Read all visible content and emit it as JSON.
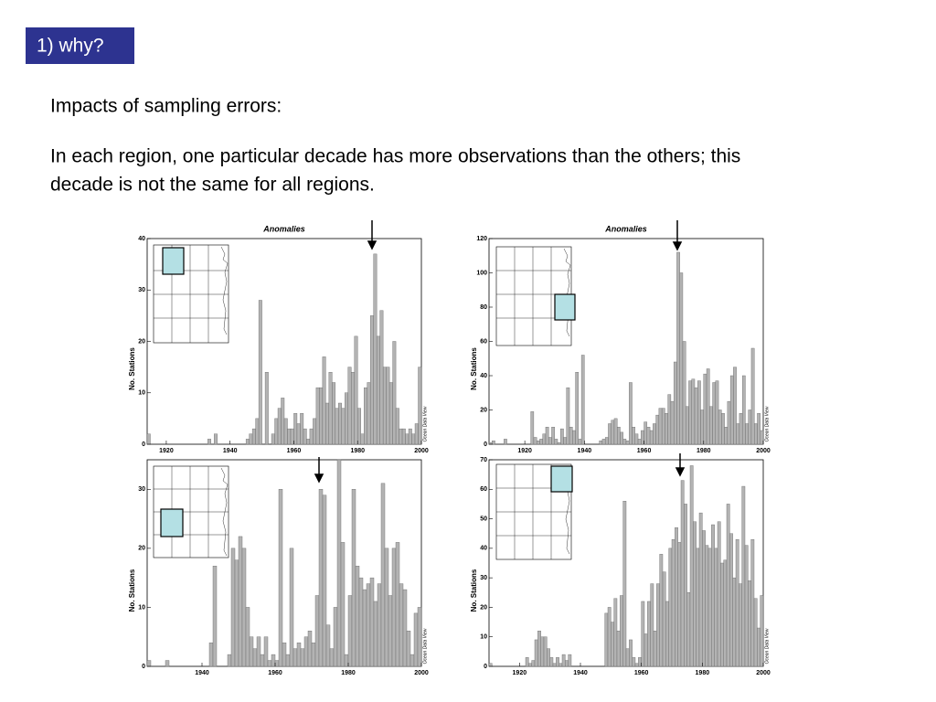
{
  "header": {
    "title": "1)  why?"
  },
  "body": [
    "Impacts of sampling errors:",
    "In each region, one particular decade has more observations than the others; this",
    "decade is not the same for all regions."
  ],
  "chart_data": [
    {
      "type": "bar",
      "title": "Anomalies",
      "ylabel": "No. Stations",
      "annotation": "Ocean Data View",
      "color": "#b3b3b3",
      "x": [
        1914,
        1933,
        1935,
        1945,
        1946,
        1947,
        1948,
        1949,
        1951,
        1953,
        1954,
        1955,
        1956,
        1957,
        1958,
        1959,
        1960,
        1961,
        1962,
        1963,
        1964,
        1965,
        1966,
        1967,
        1968,
        1969,
        1970,
        1971,
        1972,
        1973,
        1974,
        1975,
        1976,
        1977,
        1978,
        1979,
        1980,
        1981,
        1982,
        1983,
        1984,
        1985,
        1986,
        1987,
        1988,
        1989,
        1990,
        1991,
        1992,
        1993,
        1994,
        1995,
        1996,
        1997,
        1998,
        1999
      ],
      "values": [
        2,
        1,
        2,
        1,
        2,
        3,
        5,
        28,
        14,
        2,
        5,
        7,
        9,
        5,
        3,
        3,
        6,
        4,
        6,
        3,
        1,
        3,
        5,
        11,
        11,
        17,
        8,
        14,
        12,
        7,
        8,
        7,
        10,
        15,
        14,
        21,
        7,
        2,
        11,
        12,
        25,
        37,
        21,
        26,
        15,
        15,
        12,
        20,
        7,
        3,
        3,
        2,
        3,
        2,
        4,
        15
      ],
      "xlim": [
        1914,
        2000
      ],
      "ylim": [
        0,
        40
      ],
      "xticks": [
        1920,
        1940,
        1960,
        1980,
        2000
      ],
      "yticks": [
        0,
        10,
        20,
        30,
        40
      ]
    },
    {
      "type": "bar",
      "title": "Anomalies",
      "ylabel": "No. Stations",
      "annotation": "Ocean Data View",
      "color": "#b3b3b3",
      "x": [
        1908,
        1909,
        1913,
        1922,
        1923,
        1924,
        1925,
        1926,
        1927,
        1928,
        1929,
        1930,
        1931,
        1932,
        1933,
        1934,
        1935,
        1936,
        1937,
        1938,
        1939,
        1945,
        1946,
        1947,
        1948,
        1949,
        1950,
        1951,
        1952,
        1953,
        1954,
        1955,
        1956,
        1957,
        1958,
        1959,
        1960,
        1961,
        1962,
        1963,
        1964,
        1965,
        1966,
        1967,
        1968,
        1969,
        1970,
        1971,
        1972,
        1973,
        1974,
        1975,
        1976,
        1977,
        1978,
        1979,
        1980,
        1981,
        1982,
        1983,
        1984,
        1985,
        1986,
        1987,
        1988,
        1989,
        1990,
        1991,
        1992,
        1993,
        1994,
        1995,
        1996,
        1997,
        1998,
        1999
      ],
      "values": [
        1,
        2,
        3,
        19,
        4,
        2,
        3,
        6,
        10,
        4,
        10,
        3,
        1,
        9,
        4,
        33,
        10,
        8,
        42,
        3,
        52,
        2,
        3,
        4,
        12,
        14,
        15,
        10,
        7,
        3,
        2,
        36,
        10,
        6,
        3,
        8,
        13,
        10,
        8,
        12,
        17,
        21,
        21,
        18,
        29,
        25,
        48,
        112,
        100,
        60,
        22,
        37,
        38,
        33,
        37,
        20,
        41,
        44,
        22,
        36,
        37,
        20,
        18,
        10,
        25,
        40,
        45,
        12,
        18,
        40,
        12,
        20,
        56,
        12,
        18,
        8
      ],
      "xlim": [
        1908,
        2000
      ],
      "ylim": [
        0,
        120
      ],
      "xticks": [
        1920,
        1940,
        1960,
        1980,
        2000
      ],
      "yticks": [
        0,
        20,
        40,
        60,
        80,
        100,
        120
      ]
    },
    {
      "type": "bar",
      "ylabel": "No. Stations",
      "annotation": "Ocean Data View",
      "color": "#b3b3b3",
      "x": [
        1925,
        1930,
        1942,
        1943,
        1947,
        1948,
        1949,
        1950,
        1951,
        1952,
        1953,
        1954,
        1955,
        1956,
        1957,
        1958,
        1959,
        1960,
        1961,
        1962,
        1963,
        1964,
        1965,
        1966,
        1967,
        1968,
        1969,
        1970,
        1971,
        1972,
        1973,
        1974,
        1975,
        1976,
        1977,
        1978,
        1979,
        1980,
        1981,
        1982,
        1983,
        1984,
        1985,
        1986,
        1987,
        1988,
        1989,
        1990,
        1991,
        1992,
        1993,
        1994,
        1995,
        1996,
        1997,
        1998,
        1999
      ],
      "values": [
        1,
        1,
        4,
        17,
        2,
        20,
        18,
        22,
        20,
        10,
        5,
        3,
        5,
        2,
        5,
        1,
        2,
        1,
        30,
        4,
        2,
        20,
        3,
        4,
        3,
        5,
        6,
        4,
        12,
        30,
        29,
        7,
        3,
        10,
        35,
        21,
        2,
        12,
        30,
        17,
        15,
        13,
        14,
        15,
        11,
        14,
        31,
        20,
        12,
        20,
        21,
        14,
        13,
        6,
        2,
        9,
        10
      ],
      "xlim": [
        1925,
        2000
      ],
      "ylim": [
        0,
        35
      ],
      "xticks": [
        1940,
        1960,
        1980,
        2000
      ],
      "yticks": [
        0,
        10,
        20,
        30
      ]
    },
    {
      "type": "bar",
      "ylabel": "No. Stations",
      "annotation": "Ocean Data View",
      "color": "#b3b3b3",
      "x": [
        1910,
        1922,
        1923,
        1924,
        1925,
        1926,
        1927,
        1928,
        1929,
        1930,
        1931,
        1932,
        1933,
        1934,
        1935,
        1936,
        1948,
        1949,
        1950,
        1951,
        1952,
        1953,
        1954,
        1955,
        1956,
        1957,
        1958,
        1959,
        1960,
        1961,
        1962,
        1963,
        1964,
        1965,
        1966,
        1967,
        1968,
        1969,
        1970,
        1971,
        1972,
        1973,
        1974,
        1975,
        1976,
        1977,
        1978,
        1979,
        1980,
        1981,
        1982,
        1983,
        1984,
        1985,
        1986,
        1987,
        1988,
        1989,
        1990,
        1991,
        1992,
        1993,
        1994,
        1995,
        1996,
        1997,
        1998,
        1999
      ],
      "values": [
        1,
        3,
        1,
        2,
        9,
        12,
        10,
        10,
        6,
        3,
        1,
        3,
        1,
        4,
        2,
        4,
        18,
        20,
        15,
        23,
        12,
        24,
        56,
        6,
        9,
        3,
        1,
        3,
        22,
        11,
        22,
        28,
        12,
        28,
        38,
        32,
        22,
        40,
        43,
        47,
        42,
        63,
        55,
        25,
        68,
        49,
        40,
        52,
        46,
        41,
        40,
        48,
        40,
        49,
        35,
        36,
        55,
        45,
        30,
        43,
        28,
        61,
        41,
        29,
        43,
        23,
        13,
        24
      ],
      "xlim": [
        1910,
        2000
      ],
      "ylim": [
        0,
        70
      ],
      "xticks": [
        1920,
        1940,
        1960,
        1980,
        2000
      ],
      "yticks": [
        0,
        10,
        20,
        30,
        40,
        50,
        60,
        70
      ]
    }
  ]
}
